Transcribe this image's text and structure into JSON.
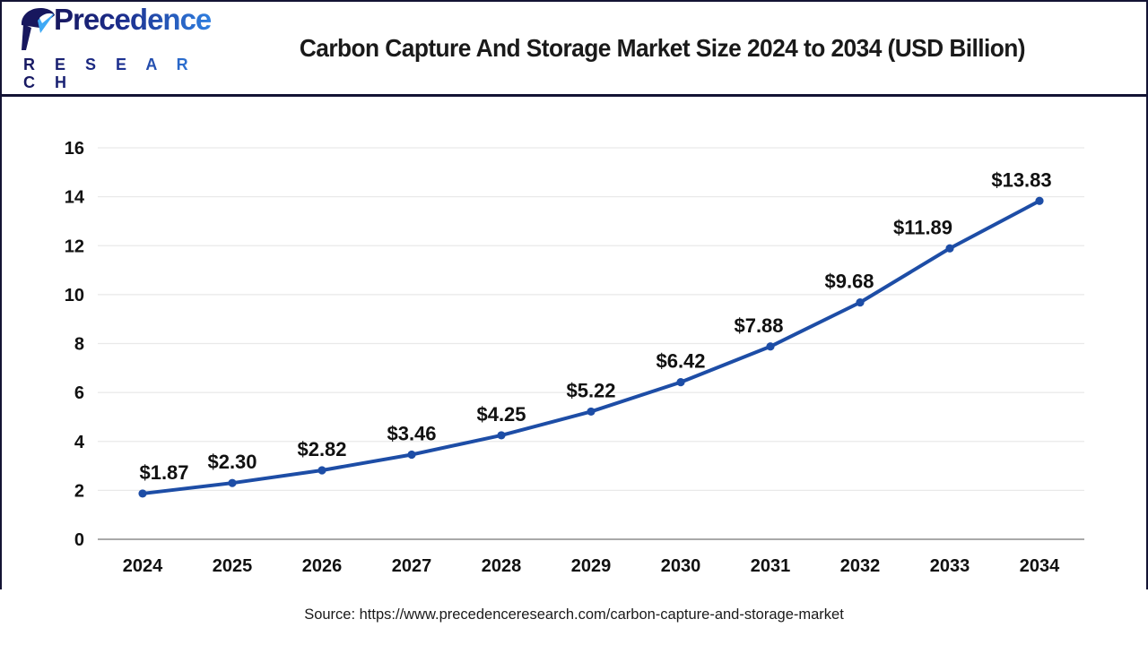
{
  "header": {
    "title": "Carbon Capture And Storage Market Size 2024 to 2034 (USD Billion)",
    "logo": {
      "word": "Precedence",
      "sub": "R E S E A R C H"
    }
  },
  "source": {
    "text": "Source: https://www.precedenceresearch.com/carbon-capture-and-storage-market"
  },
  "colors": {
    "line": "#1d4da6",
    "marker": "#1d4da6",
    "grid": "#e9e9e9",
    "zero_axis": "#a9a9a9",
    "frame_border": "#131334",
    "text": "#111111",
    "logo_dark": "#17175e",
    "logo_blue": "#2f7fe0",
    "logo_icon_light": "#3fa9f5"
  },
  "chart_data": {
    "type": "line",
    "title": "Carbon Capture And Storage Market Size 2024 to 2034 (USD Billion)",
    "categories": [
      "2024",
      "2025",
      "2026",
      "2027",
      "2028",
      "2029",
      "2030",
      "2031",
      "2032",
      "2033",
      "2034"
    ],
    "values": [
      1.87,
      2.3,
      2.82,
      3.46,
      4.25,
      5.22,
      6.42,
      7.88,
      9.68,
      11.89,
      13.83
    ],
    "point_labels": [
      "$1.87",
      "$2.30",
      "$2.82",
      "$3.46",
      "$4.25",
      "$5.22",
      "$6.42",
      "$7.88",
      "$9.68",
      "$11.89",
      "$13.83"
    ],
    "xlabel": "",
    "ylabel": "",
    "ylim": [
      0,
      16
    ],
    "yticks": [
      0,
      2,
      4,
      6,
      8,
      10,
      12,
      14,
      16
    ],
    "grid": true,
    "legend": "none"
  }
}
